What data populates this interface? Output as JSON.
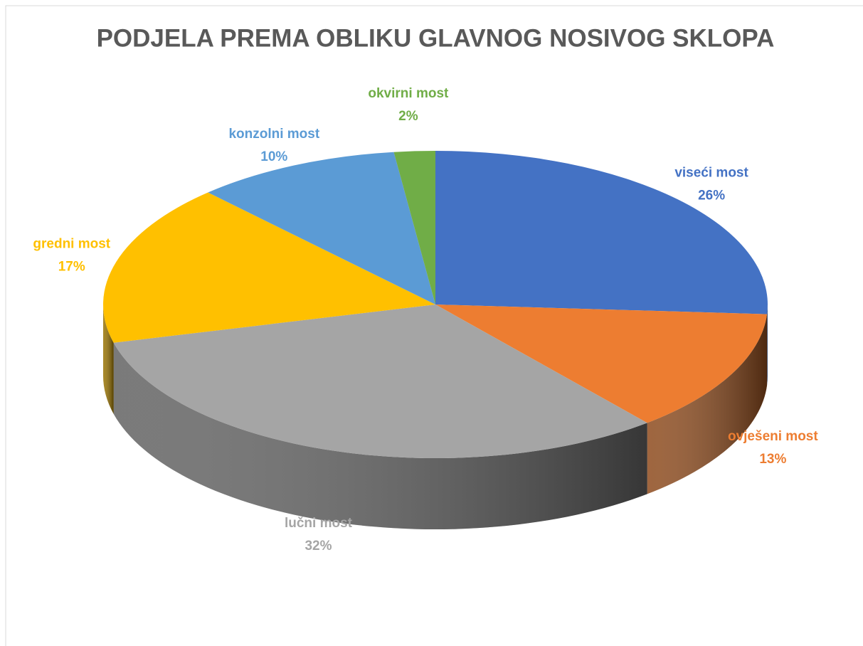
{
  "chart_data": {
    "type": "pie",
    "title": "PODJELA PREMA OBLIKU GLAVNOG NOSIVOG SKLOPA",
    "categories": [
      "viseći most",
      "ovješeni most",
      "lučni most",
      "gredni most",
      "konzolni most",
      "okvirni most"
    ],
    "values": [
      26,
      13,
      32,
      17,
      10,
      2
    ],
    "value_labels": [
      "26%",
      "13%",
      "32%",
      "17%",
      "10%",
      "2%"
    ],
    "colors": [
      "#4472c4",
      "#ed7d31",
      "#a5a5a5",
      "#ffc000",
      "#5b9bd5",
      "#70ad47"
    ]
  }
}
